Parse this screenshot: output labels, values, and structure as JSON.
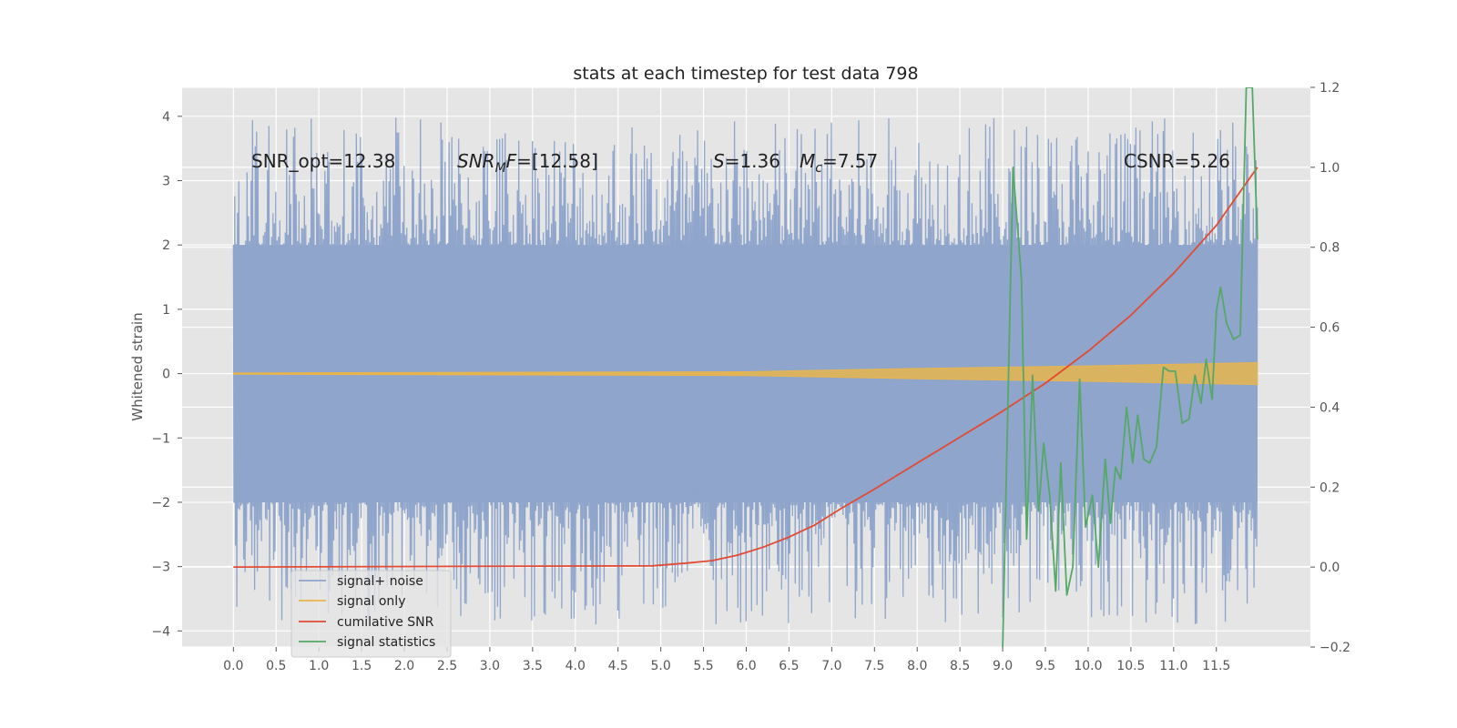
{
  "chart_data": {
    "type": "line",
    "title": "stats at each timestep for test data 798",
    "ylabel": "Whitened strain",
    "xlabel": "",
    "xlim": [
      -0.6,
      12.6
    ],
    "ylim": [
      -4.25,
      4.45
    ],
    "y2lim": [
      -0.2,
      1.2
    ],
    "x_ticks": [
      "0.0",
      "0.5",
      "1.0",
      "1.5",
      "2.0",
      "2.5",
      "3.0",
      "3.5",
      "4.0",
      "4.5",
      "5.0",
      "5.5",
      "6.0",
      "6.5",
      "7.0",
      "7.5",
      "8.0",
      "8.5",
      "9.0",
      "9.5",
      "10.0",
      "10.5",
      "11.0",
      "11.5"
    ],
    "y_ticks": [
      "4",
      "3",
      "2",
      "1",
      "0",
      "−1",
      "−2",
      "−3",
      "−4"
    ],
    "y2_ticks": [
      "1.2",
      "1.0",
      "0.8",
      "0.6",
      "0.4",
      "0.2",
      "0.0",
      "−0.2"
    ],
    "grid": true,
    "legend_position": "lower-left",
    "annotations": {
      "snr_opt": "SNR_opt=12.38",
      "snr_mf_main": "SNR",
      "snr_mf_sub": "M",
      "snr_mf_rest": "F",
      "snr_mf_value": "=[12.58]",
      "s_sym": "S",
      "s_value": "=1.36",
      "mc_sym": "M",
      "mc_sub": "c",
      "mc_value": "=7.57",
      "csnr": "CSNR=5.26"
    },
    "series": [
      {
        "name": "signal+ noise",
        "color": "#8fa5cb",
        "axis": "left",
        "envelope_upper": 2.0,
        "envelope_lower": -2.0,
        "x_range": [
          0.0,
          11.98
        ]
      },
      {
        "name": "signal only",
        "color": "#e8b54d",
        "axis": "left",
        "x": [
          0.0,
          6.0,
          8.0,
          10.0,
          11.98
        ],
        "amplitude": [
          0.01,
          0.03,
          0.08,
          0.12,
          0.17
        ]
      },
      {
        "name": "cumilative SNR",
        "color": "#e24a33",
        "axis": "right",
        "x": [
          0.0,
          4.9,
          5.3,
          5.6,
          5.9,
          6.2,
          6.5,
          6.8,
          7.1,
          7.5,
          8.0,
          8.5,
          9.0,
          9.5,
          10.0,
          10.5,
          11.0,
          11.5,
          11.98
        ],
        "values": [
          0.0,
          0.003,
          0.01,
          0.016,
          0.03,
          0.05,
          0.075,
          0.105,
          0.145,
          0.195,
          0.26,
          0.325,
          0.39,
          0.46,
          0.54,
          0.63,
          0.735,
          0.855,
          1.0
        ]
      },
      {
        "name": "signal statistics",
        "color": "#55a868",
        "axis": "right",
        "x": [
          9.0,
          9.12,
          9.22,
          9.28,
          9.35,
          9.42,
          9.48,
          9.55,
          9.62,
          9.68,
          9.75,
          9.82,
          9.9,
          9.97,
          10.05,
          10.12,
          10.2,
          10.26,
          10.32,
          10.38,
          10.45,
          10.52,
          10.58,
          10.65,
          10.72,
          10.8,
          10.88,
          10.95,
          11.02,
          11.1,
          11.18,
          11.25,
          11.32,
          11.38,
          11.45,
          11.5,
          11.55,
          11.62,
          11.7,
          11.78,
          11.85,
          11.92,
          11.98
        ],
        "values": [
          -0.2,
          1.0,
          0.72,
          0.07,
          0.48,
          0.14,
          0.31,
          0.18,
          -0.06,
          0.26,
          -0.07,
          0.0,
          0.47,
          0.1,
          0.18,
          0.0,
          0.27,
          0.11,
          0.25,
          0.22,
          0.4,
          0.26,
          0.38,
          0.27,
          0.26,
          0.3,
          0.5,
          0.49,
          0.49,
          0.36,
          0.37,
          0.48,
          0.41,
          0.52,
          0.42,
          0.64,
          0.7,
          0.61,
          0.57,
          0.58,
          1.2,
          1.2,
          0.82
        ]
      }
    ]
  }
}
